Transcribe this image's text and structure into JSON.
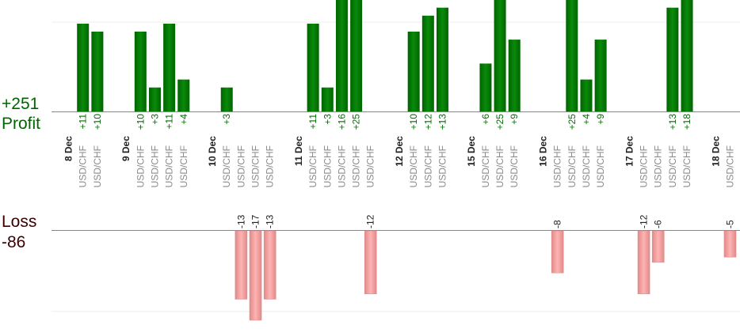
{
  "summary": {
    "profit_total": "+251",
    "profit_label": "Profit",
    "loss_label": "Loss",
    "loss_total": "-86"
  },
  "colors": {
    "profit_bar": "#006400",
    "profit_bar_light": "#0a8a0a",
    "profit_text": "#007000",
    "loss_bar": "#ffb3b3",
    "loss_bar_edge": "#e08a8a",
    "axis_line": "#888888"
  },
  "chart_data": {
    "type": "bar",
    "columns": [
      {
        "kind": "date",
        "label": "8 Dec"
      },
      {
        "kind": "trade",
        "pair": "USD/CHF",
        "value": 11
      },
      {
        "kind": "trade",
        "pair": "USD/CHF",
        "value": 10
      },
      {
        "kind": "gap"
      },
      {
        "kind": "date",
        "label": "9 Dec"
      },
      {
        "kind": "trade",
        "pair": "USD/CHF",
        "value": 10
      },
      {
        "kind": "trade",
        "pair": "USD/CHF",
        "value": 3
      },
      {
        "kind": "trade",
        "pair": "USD/CHF",
        "value": 11
      },
      {
        "kind": "trade",
        "pair": "USD/CHF",
        "value": 4
      },
      {
        "kind": "gap"
      },
      {
        "kind": "date",
        "label": "10 Dec"
      },
      {
        "kind": "trade",
        "pair": "USD/CHF",
        "value": 3
      },
      {
        "kind": "trade",
        "pair": "USD/CHF",
        "value": -13
      },
      {
        "kind": "trade",
        "pair": "USD/CHF",
        "value": -17
      },
      {
        "kind": "trade",
        "pair": "USD/CHF",
        "value": -13
      },
      {
        "kind": "gap"
      },
      {
        "kind": "date",
        "label": "11 Dec"
      },
      {
        "kind": "trade",
        "pair": "USD/CHF",
        "value": 11
      },
      {
        "kind": "trade",
        "pair": "USD/CHF",
        "value": 3
      },
      {
        "kind": "trade",
        "pair": "USD/CHF",
        "value": 16
      },
      {
        "kind": "trade",
        "pair": "USD/CHF",
        "value": 25
      },
      {
        "kind": "trade",
        "pair": "USD/CHF",
        "value": -12
      },
      {
        "kind": "gap"
      },
      {
        "kind": "date",
        "label": "12 Dec"
      },
      {
        "kind": "trade",
        "pair": "USD/CHF",
        "value": 10
      },
      {
        "kind": "trade",
        "pair": "USD/CHF",
        "value": 12
      },
      {
        "kind": "trade",
        "pair": "USD/CHF",
        "value": 13
      },
      {
        "kind": "gap"
      },
      {
        "kind": "date",
        "label": "15 Dec"
      },
      {
        "kind": "trade",
        "pair": "USD/CHF",
        "value": 6
      },
      {
        "kind": "trade",
        "pair": "USD/CHF",
        "value": 25
      },
      {
        "kind": "trade",
        "pair": "USD/CHF",
        "value": 9
      },
      {
        "kind": "gap"
      },
      {
        "kind": "date",
        "label": "16 Dec"
      },
      {
        "kind": "trade",
        "pair": "USD/CHF",
        "value": -8
      },
      {
        "kind": "trade",
        "pair": "USD/CHF",
        "value": 25
      },
      {
        "kind": "trade",
        "pair": "USD/CHF",
        "value": 4
      },
      {
        "kind": "trade",
        "pair": "USD/CHF",
        "value": 9
      },
      {
        "kind": "gap"
      },
      {
        "kind": "date",
        "label": "17 Dec"
      },
      {
        "kind": "trade",
        "pair": "USD/CHF",
        "value": -12
      },
      {
        "kind": "trade",
        "pair": "USD/CHF",
        "value": -6
      },
      {
        "kind": "trade",
        "pair": "USD/CHF",
        "value": 13
      },
      {
        "kind": "trade",
        "pair": "USD/CHF",
        "value": 18
      },
      {
        "kind": "gap"
      },
      {
        "kind": "date",
        "label": "18 Dec"
      },
      {
        "kind": "trade",
        "pair": "USD/CHF",
        "value": -5
      }
    ]
  }
}
